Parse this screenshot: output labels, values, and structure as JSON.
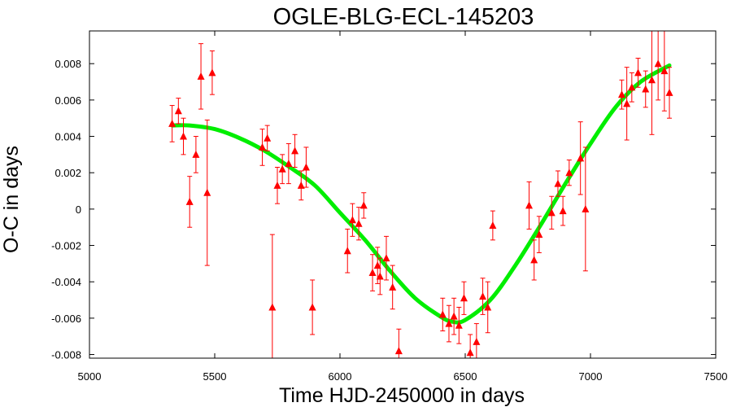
{
  "chart_data": {
    "type": "scatter",
    "title": "OGLE-BLG-ECL-145203",
    "xlabel": "Time HJD-2450000 in days",
    "ylabel": "O-C in days",
    "xlim": [
      5000,
      7500
    ],
    "ylim": [
      -0.0082,
      0.0098
    ],
    "x_ticks": [
      5000,
      5500,
      6000,
      6500,
      7000,
      7500
    ],
    "y_ticks": [
      -0.008,
      -0.006,
      -0.004,
      -0.002,
      0,
      0.002,
      0.004,
      0.006,
      0.008
    ],
    "y_tick_labels": [
      "-0.008",
      "-0.006",
      "-0.004",
      "-0.002",
      "0",
      "0.002",
      "0.004",
      "0.006",
      "0.008"
    ],
    "grid": false,
    "series": [
      {
        "role": "observations",
        "color": "#ff0000",
        "marker": "triangle",
        "points": [
          {
            "x": 5330,
            "y": 0.0047,
            "err": 0.001
          },
          {
            "x": 5355,
            "y": 0.0054,
            "err": 0.0007
          },
          {
            "x": 5375,
            "y": 0.004,
            "err": 0.001
          },
          {
            "x": 5400,
            "y": 0.0004,
            "err": 0.0014
          },
          {
            "x": 5425,
            "y": 0.003,
            "err": 0.001
          },
          {
            "x": 5445,
            "y": 0.0073,
            "err": 0.0018
          },
          {
            "x": 5470,
            "y": 0.0009,
            "err": 0.004
          },
          {
            "x": 5490,
            "y": 0.0075,
            "err": 0.0012
          },
          {
            "x": 5690,
            "y": 0.0034,
            "err": 0.001
          },
          {
            "x": 5710,
            "y": 0.0039,
            "err": 0.0007
          },
          {
            "x": 5730,
            "y": -0.0054,
            "err": 0.004
          },
          {
            "x": 5750,
            "y": 0.0013,
            "err": 0.001
          },
          {
            "x": 5770,
            "y": 0.0022,
            "err": 0.0008
          },
          {
            "x": 5795,
            "y": 0.0025,
            "err": 0.0011
          },
          {
            "x": 5820,
            "y": 0.0032,
            "err": 0.0009
          },
          {
            "x": 5845,
            "y": 0.0013,
            "err": 0.0008
          },
          {
            "x": 5865,
            "y": 0.0023,
            "err": 0.0011
          },
          {
            "x": 5890,
            "y": -0.0054,
            "err": 0.0015
          },
          {
            "x": 6030,
            "y": -0.0023,
            "err": 0.0012
          },
          {
            "x": 6050,
            "y": -0.0006,
            "err": 0.0009
          },
          {
            "x": 6075,
            "y": -0.0008,
            "err": 0.0009
          },
          {
            "x": 6095,
            "y": 0.0002,
            "err": 0.0007
          },
          {
            "x": 6130,
            "y": -0.0035,
            "err": 0.001
          },
          {
            "x": 6150,
            "y": -0.0031,
            "err": 0.001
          },
          {
            "x": 6160,
            "y": -0.0037,
            "err": 0.001
          },
          {
            "x": 6185,
            "y": -0.0027,
            "err": 0.0012
          },
          {
            "x": 6210,
            "y": -0.0043,
            "err": 0.0012
          },
          {
            "x": 6235,
            "y": -0.0078,
            "err": 0.0012
          },
          {
            "x": 6410,
            "y": -0.0058,
            "err": 0.0009
          },
          {
            "x": 6435,
            "y": -0.0063,
            "err": 0.001
          },
          {
            "x": 6455,
            "y": -0.0059,
            "err": 0.001
          },
          {
            "x": 6475,
            "y": -0.0064,
            "err": 0.001
          },
          {
            "x": 6495,
            "y": -0.0049,
            "err": 0.0009
          },
          {
            "x": 6520,
            "y": -0.0079,
            "err": 0.001
          },
          {
            "x": 6545,
            "y": -0.0073,
            "err": 0.001
          },
          {
            "x": 6570,
            "y": -0.0048,
            "err": 0.001
          },
          {
            "x": 6590,
            "y": -0.0054,
            "err": 0.0014
          },
          {
            "x": 6610,
            "y": -0.0009,
            "err": 0.0008
          },
          {
            "x": 6755,
            "y": 0.0002,
            "err": 0.0013
          },
          {
            "x": 6775,
            "y": -0.0028,
            "err": 0.0011
          },
          {
            "x": 6795,
            "y": -0.0014,
            "err": 0.001
          },
          {
            "x": 6845,
            "y": -0.0002,
            "err": 0.0009
          },
          {
            "x": 6870,
            "y": 0.0014,
            "err": 0.0007
          },
          {
            "x": 6890,
            "y": -0.0001,
            "err": 0.0008
          },
          {
            "x": 6915,
            "y": 0.002,
            "err": 0.0007
          },
          {
            "x": 6960,
            "y": 0.0028,
            "err": 0.002
          },
          {
            "x": 6980,
            "y": 0.0,
            "err": 0.0034
          },
          {
            "x": 7125,
            "y": 0.0063,
            "err": 0.0008
          },
          {
            "x": 7145,
            "y": 0.0058,
            "err": 0.002
          },
          {
            "x": 7165,
            "y": 0.0067,
            "err": 0.0008
          },
          {
            "x": 7190,
            "y": 0.0075,
            "err": 0.0008
          },
          {
            "x": 7220,
            "y": 0.0066,
            "err": 0.001
          },
          {
            "x": 7245,
            "y": 0.0071,
            "err": 0.003
          },
          {
            "x": 7270,
            "y": 0.008,
            "err": 0.002
          },
          {
            "x": 7295,
            "y": 0.0076,
            "err": 0.0022
          },
          {
            "x": 7315,
            "y": 0.0064,
            "err": 0.0014
          }
        ]
      },
      {
        "role": "fit",
        "color": "#00ee00",
        "type": "line",
        "x": [
          5330,
          5400,
          5500,
          5600,
          5700,
          5800,
          5900,
          6000,
          6100,
          6200,
          6300,
          6400,
          6450,
          6500,
          6600,
          6700,
          6800,
          6900,
          7000,
          7100,
          7200,
          7315
        ],
        "y": [
          0.0046,
          0.0046,
          0.0044,
          0.0039,
          0.0032,
          0.0023,
          0.0013,
          -0.0002,
          -0.0017,
          -0.0034,
          -0.0049,
          -0.0059,
          -0.0062,
          -0.0061,
          -0.005,
          -0.0031,
          -0.0009,
          0.0014,
          0.0036,
          0.0056,
          0.007,
          0.0079
        ]
      }
    ]
  }
}
